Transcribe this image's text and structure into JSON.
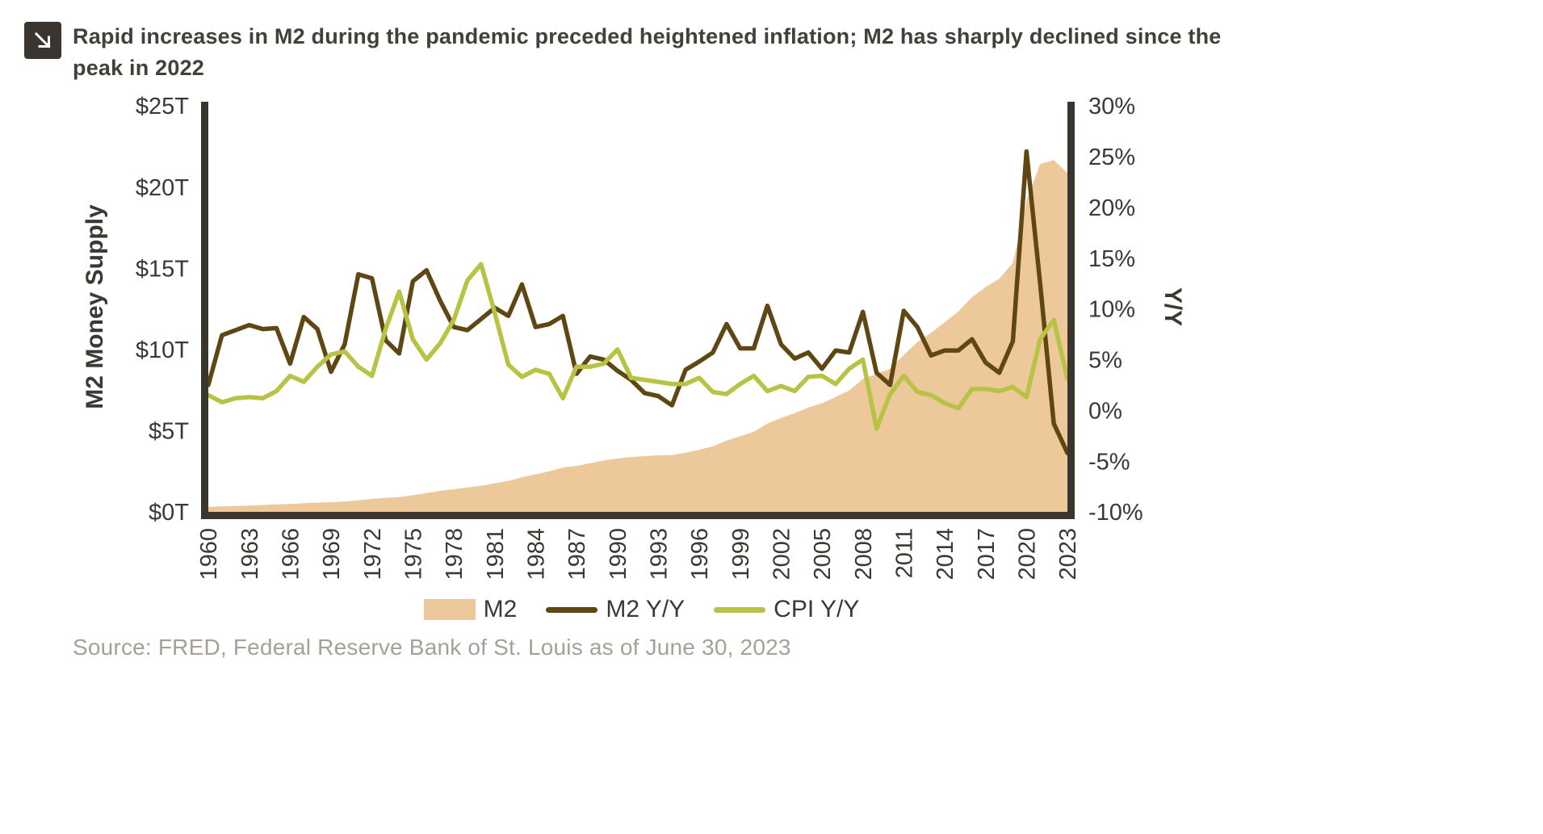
{
  "header": {
    "icon": "arrow-down-right-icon",
    "title": "Rapid increases in M2 during the pandemic preceded heightened inflation; M2 has sharply declined since the peak in 2022"
  },
  "source": "Source: FRED, Federal Reserve Bank of St. Louis as of June 30, 2023",
  "chart_data": {
    "type": "area",
    "subtype": "combo area + two lines, dual y-axes",
    "x_domain": [
      1960,
      2023
    ],
    "x_ticks": [
      1960,
      1963,
      1966,
      1969,
      1972,
      1975,
      1978,
      1981,
      1984,
      1987,
      1990,
      1993,
      1996,
      1999,
      2002,
      2005,
      2008,
      2011,
      2014,
      2017,
      2020,
      2023
    ],
    "left_axis": {
      "label": "M2 Money Supply",
      "min": 0,
      "max": 25,
      "ticks": [
        "$25T",
        "$20T",
        "$15T",
        "$10T",
        "$5T",
        "$0T"
      ]
    },
    "right_axis": {
      "label": "Y/Y",
      "min": -10,
      "max": 30,
      "ticks": [
        "30%",
        "25%",
        "20%",
        "15%",
        "10%",
        "5%",
        "0%",
        "-5%",
        "-10%"
      ]
    },
    "spine_color": "#3a352f",
    "grid": false,
    "legend_position": "bottom-center",
    "years": [
      1960,
      1961,
      1962,
      1963,
      1964,
      1965,
      1966,
      1967,
      1968,
      1969,
      1970,
      1971,
      1972,
      1973,
      1974,
      1975,
      1976,
      1977,
      1978,
      1979,
      1980,
      1981,
      1982,
      1983,
      1984,
      1985,
      1986,
      1987,
      1988,
      1989,
      1990,
      1991,
      1992,
      1993,
      1994,
      1995,
      1996,
      1997,
      1998,
      1999,
      2000,
      2001,
      2002,
      2003,
      2004,
      2005,
      2006,
      2007,
      2008,
      2009,
      2010,
      2011,
      2012,
      2013,
      2014,
      2015,
      2016,
      2017,
      2018,
      2019,
      2020,
      2021,
      2022,
      2023
    ],
    "series": [
      {
        "name": "M2",
        "type": "area",
        "axis": "left",
        "color": "#ecc89b",
        "values": [
          0.31,
          0.34,
          0.36,
          0.39,
          0.42,
          0.46,
          0.48,
          0.53,
          0.57,
          0.59,
          0.63,
          0.71,
          0.8,
          0.86,
          0.91,
          1.02,
          1.16,
          1.29,
          1.39,
          1.5,
          1.6,
          1.76,
          1.91,
          2.13,
          2.31,
          2.5,
          2.73,
          2.83,
          2.99,
          3.16,
          3.28,
          3.38,
          3.43,
          3.48,
          3.5,
          3.64,
          3.82,
          4.04,
          4.38,
          4.65,
          4.93,
          5.43,
          5.78,
          6.07,
          6.42,
          6.68,
          7.07,
          7.47,
          8.19,
          8.49,
          8.8,
          9.66,
          10.45,
          11.02,
          11.67,
          12.34,
          13.21,
          13.84,
          14.35,
          15.33,
          19.13,
          21.41,
          21.66,
          20.86
        ]
      },
      {
        "name": "M2 Y/Y",
        "type": "line",
        "axis": "right",
        "color": "#5e4712",
        "values": [
          2.5,
          7.4,
          7.9,
          8.4,
          8.0,
          8.1,
          4.6,
          9.2,
          8.0,
          3.8,
          6.5,
          13.4,
          13.0,
          6.9,
          5.6,
          12.7,
          13.8,
          10.8,
          8.2,
          7.9,
          9.0,
          10.1,
          9.3,
          12.4,
          8.2,
          8.5,
          9.3,
          3.6,
          5.3,
          5.0,
          3.9,
          3.0,
          1.7,
          1.4,
          0.5,
          4.0,
          4.8,
          5.7,
          8.5,
          6.1,
          6.1,
          10.3,
          6.5,
          5.1,
          5.7,
          4.1,
          5.9,
          5.7,
          9.7,
          3.7,
          2.5,
          9.8,
          8.2,
          5.4,
          5.9,
          5.9,
          7.0,
          4.7,
          3.7,
          6.8,
          25.5,
          12.5,
          -1.3,
          -4.2
        ]
      },
      {
        "name": "CPI Y/Y",
        "type": "line",
        "axis": "right",
        "color": "#b6c344",
        "values": [
          1.5,
          0.8,
          1.2,
          1.3,
          1.2,
          1.9,
          3.4,
          2.8,
          4.3,
          5.5,
          5.8,
          4.3,
          3.4,
          8.0,
          11.7,
          7.0,
          5.0,
          6.6,
          8.9,
          12.8,
          14.4,
          9.6,
          4.5,
          3.3,
          4.0,
          3.6,
          1.2,
          4.3,
          4.3,
          4.6,
          6.0,
          3.2,
          3.0,
          2.8,
          2.6,
          2.6,
          3.2,
          1.8,
          1.6,
          2.6,
          3.4,
          1.9,
          2.4,
          1.9,
          3.3,
          3.4,
          2.6,
          4.1,
          5.0,
          -1.8,
          1.6,
          3.4,
          1.8,
          1.5,
          0.7,
          0.2,
          2.1,
          2.1,
          1.9,
          2.3,
          1.3,
          7.0,
          8.9,
          3.1
        ]
      }
    ]
  }
}
